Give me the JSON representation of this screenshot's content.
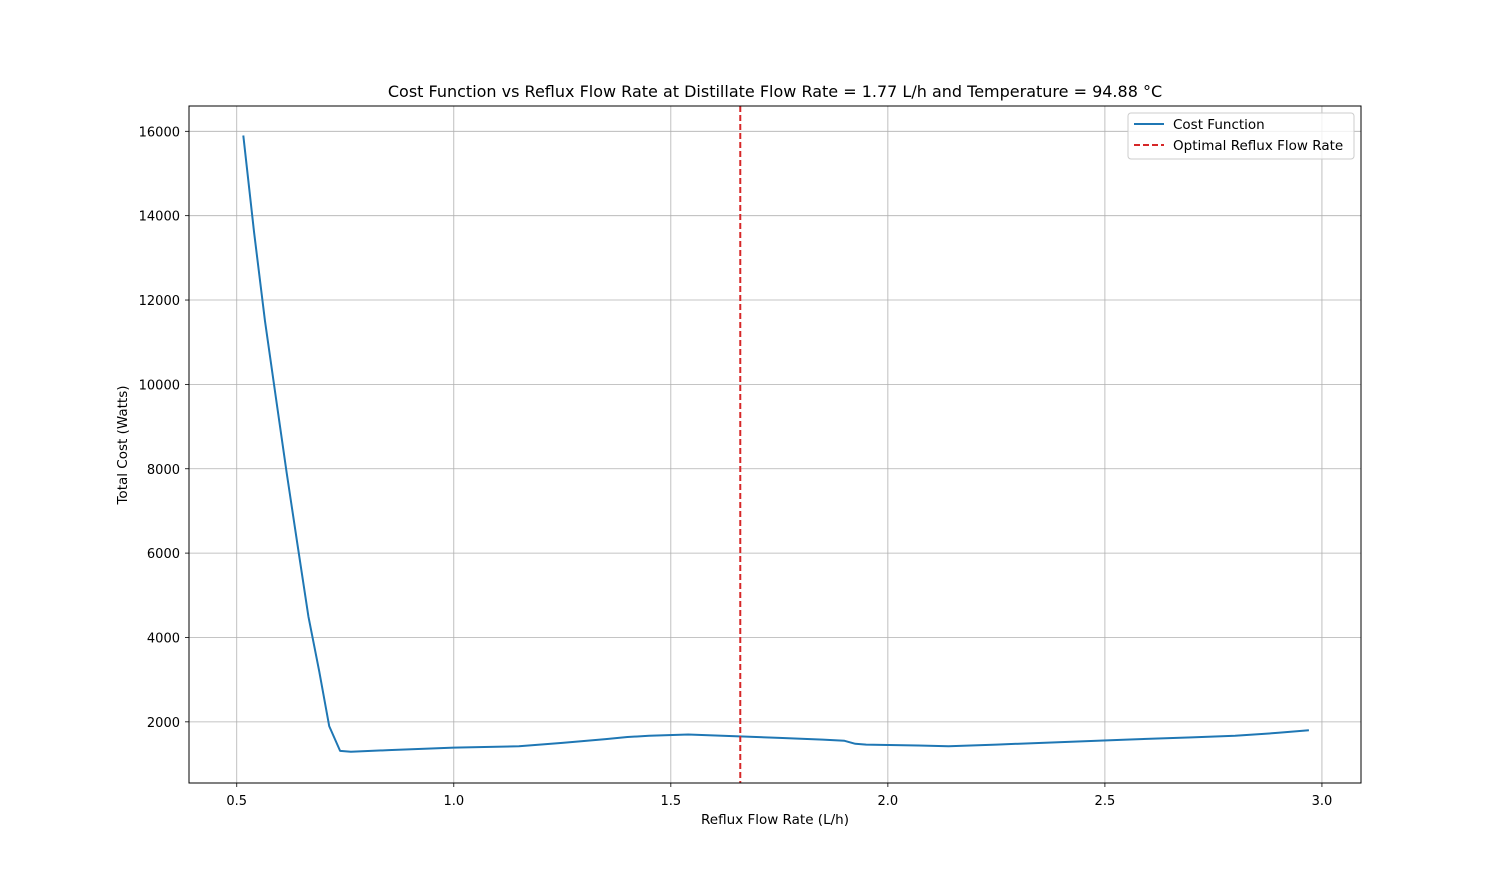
{
  "chart_data": {
    "type": "line",
    "title": "Cost Function vs Reflux Flow Rate at Distillate Flow Rate = 1.77 L/h and Temperature = 94.88 °C",
    "xlabel": "Reflux Flow Rate (L/h)",
    "ylabel": "Total Cost (Watts)",
    "xlim": [
      0.39,
      3.09
    ],
    "ylim": [
      550,
      16600
    ],
    "xticks": [
      0.5,
      1.0,
      1.5,
      2.0,
      2.5,
      3.0
    ],
    "xtick_labels": [
      "0.5",
      "1.0",
      "1.5",
      "2.0",
      "2.5",
      "3.0"
    ],
    "yticks": [
      2000,
      4000,
      6000,
      8000,
      10000,
      12000,
      14000,
      16000
    ],
    "ytick_labels": [
      "2000",
      "4000",
      "6000",
      "8000",
      "10000",
      "12000",
      "14000",
      "16000"
    ],
    "grid": true,
    "legend_position": "top-right",
    "series": [
      {
        "name": "Cost Function",
        "color": "#1f77b4",
        "style": "solid",
        "x": [
          0.515,
          0.54,
          0.565,
          0.59,
          0.615,
          0.64,
          0.665,
          0.69,
          0.713,
          0.738,
          0.763,
          0.85,
          1.0,
          1.15,
          1.25,
          1.35,
          1.4,
          1.45,
          1.54,
          1.65,
          1.75,
          1.85,
          1.9,
          1.925,
          1.95,
          2.0,
          2.07,
          2.14,
          2.25,
          2.4,
          2.55,
          2.7,
          2.8,
          2.9,
          2.97
        ],
        "y": [
          15900,
          13600,
          11500,
          9700,
          7900,
          6200,
          4500,
          3200,
          1900,
          1310,
          1290,
          1330,
          1390,
          1420,
          1500,
          1590,
          1640,
          1670,
          1700,
          1660,
          1620,
          1580,
          1550,
          1480,
          1460,
          1450,
          1440,
          1420,
          1460,
          1520,
          1580,
          1630,
          1670,
          1740,
          1800
        ]
      },
      {
        "name": "Optimal Reflux Flow Rate",
        "color": "#d62728",
        "style": "dashed",
        "x_value": 1.66
      }
    ]
  }
}
